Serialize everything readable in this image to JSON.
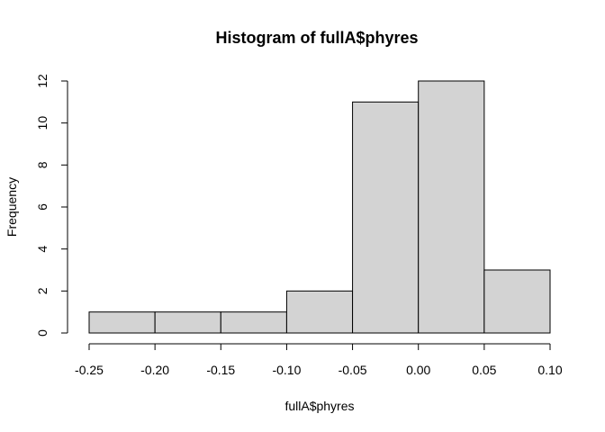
{
  "chart_data": {
    "type": "bar",
    "title": "Histogram of fullA$phyres",
    "xlabel": "fullA$phyres",
    "ylabel": "Frequency",
    "bins": [
      {
        "x0": -0.25,
        "x1": -0.2,
        "value": 1
      },
      {
        "x0": -0.2,
        "x1": -0.15,
        "value": 1
      },
      {
        "x0": -0.15,
        "x1": -0.1,
        "value": 1
      },
      {
        "x0": -0.1,
        "x1": -0.05,
        "value": 2
      },
      {
        "x0": -0.05,
        "x1": 0.0,
        "value": 11
      },
      {
        "x0": 0.0,
        "x1": 0.05,
        "value": 12
      },
      {
        "x0": 0.05,
        "x1": 0.1,
        "value": 3
      }
    ],
    "xlim": [
      -0.25,
      0.1
    ],
    "ylim": [
      0,
      12
    ],
    "xticks": [
      -0.25,
      -0.2,
      -0.15,
      -0.1,
      -0.05,
      0.0,
      0.05,
      0.1
    ],
    "xtick_labels": [
      "-0.25",
      "-0.20",
      "-0.15",
      "-0.10",
      "-0.05",
      "0.00",
      "0.05",
      "0.10"
    ],
    "yticks": [
      0,
      2,
      4,
      6,
      8,
      10,
      12
    ],
    "ytick_labels": [
      "0",
      "2",
      "4",
      "6",
      "8",
      "10",
      "12"
    ],
    "grid": false,
    "bar_color": "#d3d3d3",
    "edge_color": "#000000"
  }
}
